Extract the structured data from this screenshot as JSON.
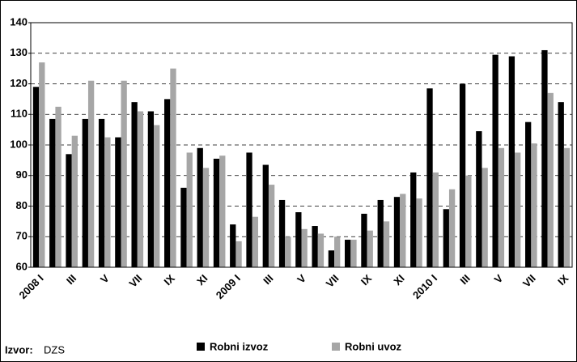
{
  "chart_data": {
    "type": "bar",
    "categories": [
      "2008 I",
      null,
      "III",
      null,
      "V",
      null,
      "VII",
      null,
      "IX",
      null,
      "XI",
      null,
      "2009 I",
      null,
      "III",
      null,
      "V",
      null,
      "VII",
      null,
      "IX",
      null,
      "XI",
      null,
      "2010 I",
      null,
      "III",
      null,
      "V",
      null,
      "VII",
      null,
      "IX"
    ],
    "series": [
      {
        "name": "Robni izvoz",
        "color": "#000000",
        "values": [
          119,
          108.5,
          97,
          108.5,
          108.5,
          102.5,
          114,
          111,
          115,
          86,
          99,
          95.5,
          74,
          97.5,
          93.5,
          82,
          78,
          73.5,
          65.5,
          69,
          77.5,
          82,
          83,
          91,
          118.5,
          79,
          120,
          104.5,
          129.5,
          129,
          107.5,
          131,
          114
        ]
      },
      {
        "name": "Robni uvoz",
        "color": "#a6a6a6",
        "values": [
          127,
          112.5,
          103,
          121,
          102.5,
          121,
          111,
          106.5,
          125,
          97.5,
          92.5,
          96.5,
          68.5,
          76.5,
          87,
          70,
          72.5,
          71,
          70,
          69,
          72,
          75,
          84,
          82.5,
          91,
          85.5,
          90,
          92.5,
          99,
          97.5,
          100.5,
          117,
          99
        ]
      }
    ],
    "ylim": [
      60,
      140
    ],
    "yticks": [
      60,
      70,
      80,
      90,
      100,
      110,
      120,
      130,
      140
    ],
    "grid": true,
    "source_label": "Izvor:",
    "source": "DZS"
  }
}
